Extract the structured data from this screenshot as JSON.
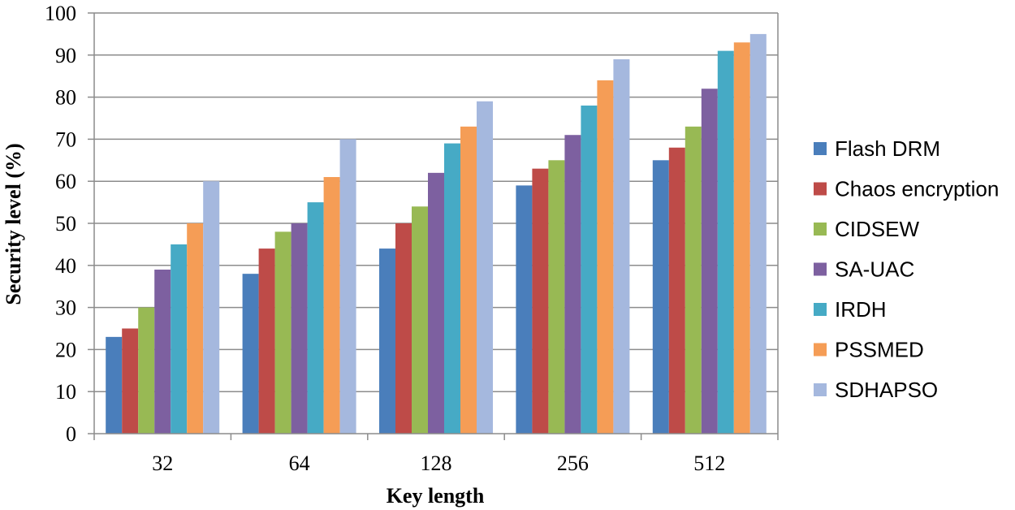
{
  "chart_data": {
    "type": "bar",
    "title": "",
    "xlabel": "Key length",
    "ylabel": "Security level (%)",
    "ylim": [
      0,
      100
    ],
    "yticks": [
      "0",
      "10",
      "20",
      "30",
      "40",
      "50",
      "60",
      "70",
      "80",
      "90",
      "100"
    ],
    "grid": true,
    "legend_position": "right",
    "categories": [
      "32",
      "64",
      "128",
      "256",
      "512"
    ],
    "series": [
      {
        "name": "Flash DRM",
        "color": "#4a7ebb",
        "values": [
          23,
          38,
          44,
          59,
          65
        ]
      },
      {
        "name": "Chaos encryption",
        "color": "#be4b48",
        "values": [
          25,
          44,
          50,
          63,
          68
        ]
      },
      {
        "name": "CIDSEW",
        "color": "#98b954",
        "values": [
          30,
          48,
          54,
          65,
          73
        ]
      },
      {
        "name": "SA-UAC",
        "color": "#7d60a0",
        "values": [
          39,
          50,
          62,
          71,
          82
        ]
      },
      {
        "name": "IRDH",
        "color": "#46aac5",
        "values": [
          45,
          55,
          69,
          78,
          91
        ]
      },
      {
        "name": "PSSMED",
        "color": "#f59d56",
        "values": [
          50,
          61,
          73,
          84,
          93
        ]
      },
      {
        "name": "SDHAPSO",
        "color": "#a5b8de",
        "values": [
          60,
          70,
          79,
          89,
          95
        ]
      }
    ]
  }
}
